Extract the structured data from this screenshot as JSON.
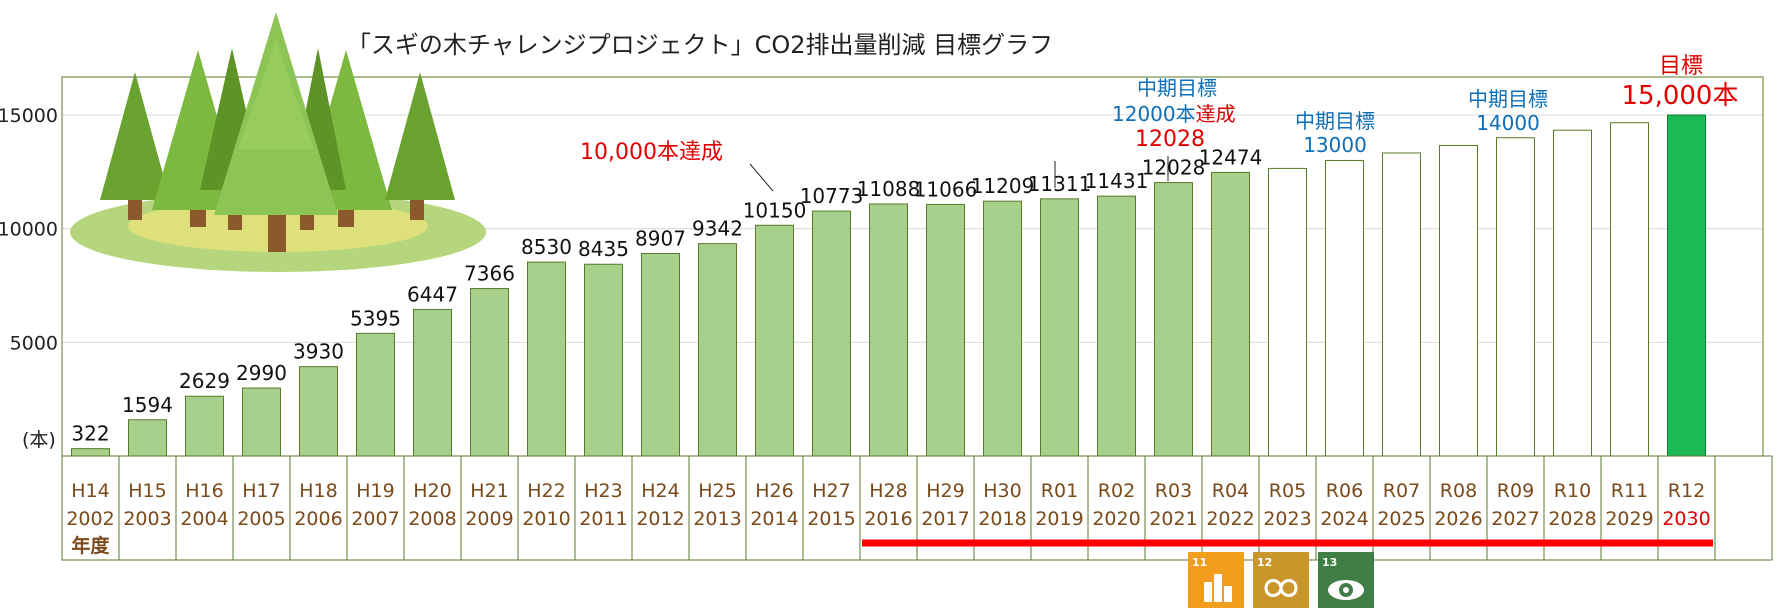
{
  "chart_data": {
    "type": "bar",
    "title": "「スギの木チャレンジプロジェクト」CO2排出量削減 目標グラフ",
    "unit_label": "(本)",
    "ylim": [
      0,
      16500
    ],
    "yticks": [
      5000,
      10000,
      15000
    ],
    "grid": true,
    "categories_era": [
      "H14",
      "H15",
      "H16",
      "H17",
      "H18",
      "H19",
      "H20",
      "H21",
      "H22",
      "H23",
      "H24",
      "H25",
      "H26",
      "H27",
      "H28",
      "H29",
      "H30",
      "R01",
      "R02",
      "R03",
      "R04",
      "R05",
      "R06",
      "R07",
      "R08",
      "R09",
      "R10",
      "R11",
      "R12"
    ],
    "categories_year": [
      "2002",
      "2003",
      "2004",
      "2005",
      "2006",
      "2007",
      "2008",
      "2009",
      "2010",
      "2011",
      "2012",
      "2013",
      "2014",
      "2015",
      "2016",
      "2017",
      "2018",
      "2019",
      "2020",
      "2021",
      "2022",
      "2023",
      "2024",
      "2025",
      "2026",
      "2027",
      "2028",
      "2029",
      "2030"
    ],
    "year_axis_label": "年度",
    "series": [
      {
        "values": [
          322,
          1594,
          2629,
          2990,
          3930,
          5395,
          6447,
          7366,
          8530,
          8435,
          8907,
          9342,
          10150,
          10773,
          11088,
          11066,
          11209,
          11311,
          11431,
          12028,
          12474,
          12650,
          13000,
          13330,
          13660,
          14000,
          14330,
          14660,
          15000
        ],
        "labels": [
          "322",
          "1594",
          "2629",
          "2990",
          "3930",
          "5395",
          "6447",
          "7366",
          "8530",
          "8435",
          "8907",
          "9342",
          "10150",
          "10773",
          "11088",
          "11066",
          "11209",
          "11311",
          "11431",
          "12028",
          "12474",
          "",
          "",
          "",
          "",
          "",
          "",
          "",
          ""
        ],
        "kind": [
          "actual",
          "actual",
          "actual",
          "actual",
          "actual",
          "actual",
          "actual",
          "actual",
          "actual",
          "actual",
          "actual",
          "actual",
          "actual",
          "actual",
          "actual",
          "actual",
          "actual",
          "actual",
          "actual",
          "actual",
          "actual",
          "plan",
          "plan",
          "plan",
          "plan",
          "plan",
          "plan",
          "plan",
          "target"
        ]
      }
    ],
    "annotations": {
      "milestone_10000": "10,000本達成",
      "mid_target_12000_line1": "中期目標",
      "mid_target_12000_line2": "12000本",
      "mid_target_12000_achieved": "達成",
      "mid_target_12000_value": "12028",
      "mid_target_13000_line1": "中期目標",
      "mid_target_13000_line2": "13000",
      "mid_target_14000_line1": "中期目標",
      "mid_target_14000_line2": "14000",
      "final_target_line1": "目標",
      "final_target_line2": "15,000本"
    },
    "colors": {
      "actual": "#a8d08d",
      "plan": "#ffffff",
      "target": "#1db954",
      "frame": "#5a7a2a",
      "highlight_line": "#ff0000",
      "annotation_blue": "#0d6fb8",
      "annotation_red": "#e00000",
      "axis_label": "#7a4a1a"
    }
  },
  "sdg_icons": [
    {
      "name": "sdg-11-icon",
      "number": "11",
      "color": "#f39d1f"
    },
    {
      "name": "sdg-12-icon",
      "number": "12",
      "color": "#c9962c"
    },
    {
      "name": "sdg-13-icon",
      "number": "13",
      "color": "#3f7e44"
    }
  ]
}
